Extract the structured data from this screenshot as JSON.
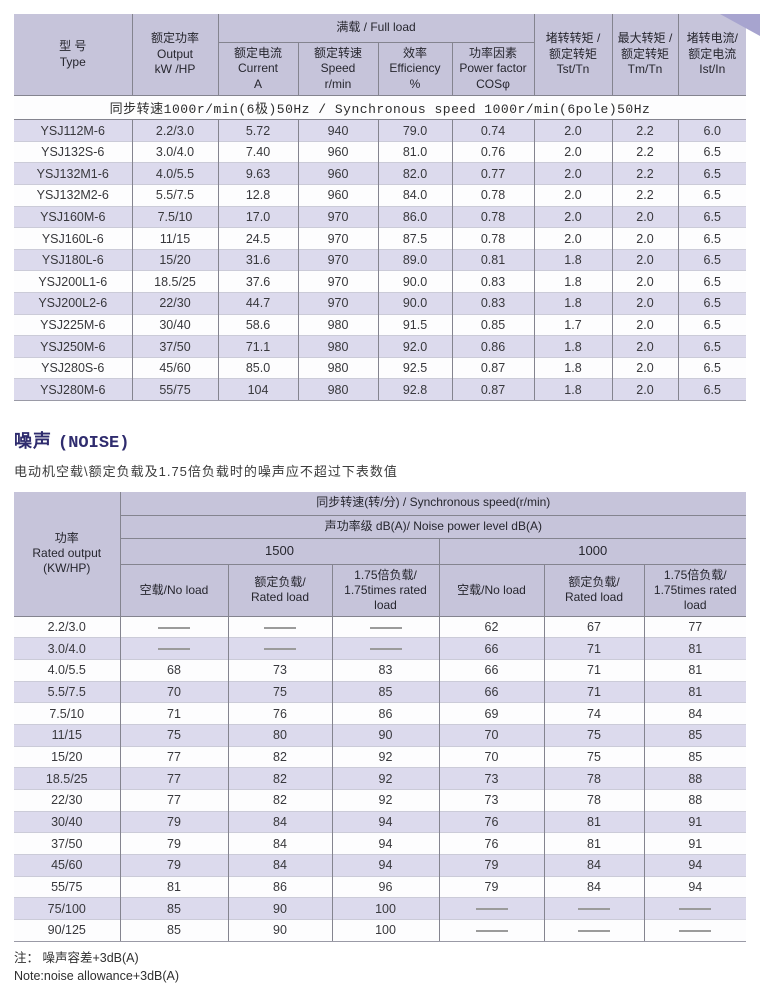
{
  "colors": {
    "header_bg": "#c6c4da",
    "stripe_bg": "#dcdaed",
    "border_dark": "#84848f",
    "border_light": "#cbcbd8",
    "title_color": "#2f2c6e",
    "corner_decor": "#a7a4cf"
  },
  "motor_table": {
    "header": {
      "type": {
        "lines": [
          "型 号",
          "Type"
        ]
      },
      "output": {
        "lines": [
          "额定功率",
          "Output",
          "kW /HP"
        ]
      },
      "full_load": "满载 / Full load",
      "current": {
        "lines": [
          "额定电流",
          "Current",
          "A"
        ]
      },
      "speed": {
        "lines": [
          "额定转速",
          "Speed",
          "r/min"
        ]
      },
      "efficiency": {
        "lines": [
          "效率",
          "Efficiency",
          "%"
        ]
      },
      "power_factor": {
        "lines": [
          "功率因素",
          "Power factor",
          "COSφ"
        ]
      },
      "tst": {
        "lines": [
          "堵转转矩 /",
          "额定转矩",
          "Tst/Tn"
        ]
      },
      "tm": {
        "lines": [
          "最大转矩 /",
          "额定转矩",
          "Tm/Tn"
        ]
      },
      "ist": {
        "lines": [
          "堵转电流/",
          "额定电流",
          "Ist/In"
        ]
      }
    },
    "group_header": "同步转速1000r/min(6极)50Hz / Synchronous speed 1000r/min(6pole)50Hz",
    "rows": [
      [
        "YSJ112M-6",
        "2.2/3.0",
        "5.72",
        "940",
        "79.0",
        "0.74",
        "2.0",
        "2.2",
        "6.0"
      ],
      [
        "YSJ132S-6",
        "3.0/4.0",
        "7.40",
        "960",
        "81.0",
        "0.76",
        "2.0",
        "2.2",
        "6.5"
      ],
      [
        "YSJ132M1-6",
        "4.0/5.5",
        "9.63",
        "960",
        "82.0",
        "0.77",
        "2.0",
        "2.2",
        "6.5"
      ],
      [
        "YSJ132M2-6",
        "5.5/7.5",
        "12.8",
        "960",
        "84.0",
        "0.78",
        "2.0",
        "2.2",
        "6.5"
      ],
      [
        "YSJ160M-6",
        "7.5/10",
        "17.0",
        "970",
        "86.0",
        "0.78",
        "2.0",
        "2.0",
        "6.5"
      ],
      [
        "YSJ160L-6",
        "11/15",
        "24.5",
        "970",
        "87.5",
        "0.78",
        "2.0",
        "2.0",
        "6.5"
      ],
      [
        "YSJ180L-6",
        "15/20",
        "31.6",
        "970",
        "89.0",
        "0.81",
        "1.8",
        "2.0",
        "6.5"
      ],
      [
        "YSJ200L1-6",
        "18.5/25",
        "37.6",
        "970",
        "90.0",
        "0.83",
        "1.8",
        "2.0",
        "6.5"
      ],
      [
        "YSJ200L2-6",
        "22/30",
        "44.7",
        "970",
        "90.0",
        "0.83",
        "1.8",
        "2.0",
        "6.5"
      ],
      [
        "YSJ225M-6",
        "30/40",
        "58.6",
        "980",
        "91.5",
        "0.85",
        "1.7",
        "2.0",
        "6.5"
      ],
      [
        "YSJ250M-6",
        "37/50",
        "71.1",
        "980",
        "92.0",
        "0.86",
        "1.8",
        "2.0",
        "6.5"
      ],
      [
        "YSJ280S-6",
        "45/60",
        "85.0",
        "980",
        "92.5",
        "0.87",
        "1.8",
        "2.0",
        "6.5"
      ],
      [
        "YSJ280M-6",
        "55/75",
        "104",
        "980",
        "92.8",
        "0.87",
        "1.8",
        "2.0",
        "6.5"
      ]
    ]
  },
  "noise_section": {
    "title_zh": "噪声",
    "title_en": "(NOISE)",
    "subtitle": "电动机空载\\额定负载及1.75倍负载时的噪声应不超过下表数值"
  },
  "noise_table": {
    "power_header": {
      "lines": [
        "功率",
        "Rated output",
        "(KW/HP)"
      ]
    },
    "speed_header": "同步转速(转/分) /  Synchronous speed(r/min)",
    "level_header": "声功率级 dB(A)/  Noise power level dB(A)",
    "speeds": [
      "1500",
      "1000"
    ],
    "load_headers": [
      {
        "lines": [
          "空载/No load"
        ]
      },
      {
        "lines": [
          "额定负载/",
          "Rated load"
        ]
      },
      {
        "lines": [
          "1.75倍负载/",
          "1.75times rated load"
        ]
      }
    ],
    "no_data_symbol": "——",
    "rows": [
      [
        "2.2/3.0",
        "——",
        "——",
        "——",
        "62",
        "67",
        "77"
      ],
      [
        "3.0/4.0",
        "——",
        "——",
        "——",
        "66",
        "71",
        "81"
      ],
      [
        "4.0/5.5",
        "68",
        "73",
        "83",
        "66",
        "71",
        "81"
      ],
      [
        "5.5/7.5",
        "70",
        "75",
        "85",
        "66",
        "71",
        "81"
      ],
      [
        "7.5/10",
        "71",
        "76",
        "86",
        "69",
        "74",
        "84"
      ],
      [
        "11/15",
        "75",
        "80",
        "90",
        "70",
        "75",
        "85"
      ],
      [
        "15/20",
        "77",
        "82",
        "92",
        "70",
        "75",
        "85"
      ],
      [
        "18.5/25",
        "77",
        "82",
        "92",
        "73",
        "78",
        "88"
      ],
      [
        "22/30",
        "77",
        "82",
        "92",
        "73",
        "78",
        "88"
      ],
      [
        "30/40",
        "79",
        "84",
        "94",
        "76",
        "81",
        "91"
      ],
      [
        "37/50",
        "79",
        "84",
        "94",
        "76",
        "81",
        "91"
      ],
      [
        "45/60",
        "79",
        "84",
        "94",
        "79",
        "84",
        "94"
      ],
      [
        "55/75",
        "81",
        "86",
        "96",
        "79",
        "84",
        "94"
      ],
      [
        "75/100",
        "85",
        "90",
        "100",
        "——",
        "——",
        "——"
      ],
      [
        "90/125",
        "85",
        "90",
        "100",
        "——",
        "——",
        "——"
      ]
    ]
  },
  "note": {
    "line1": "注： 噪声容差+3dB(A)",
    "line2": "Note:noise allowance+3dB(A)"
  }
}
